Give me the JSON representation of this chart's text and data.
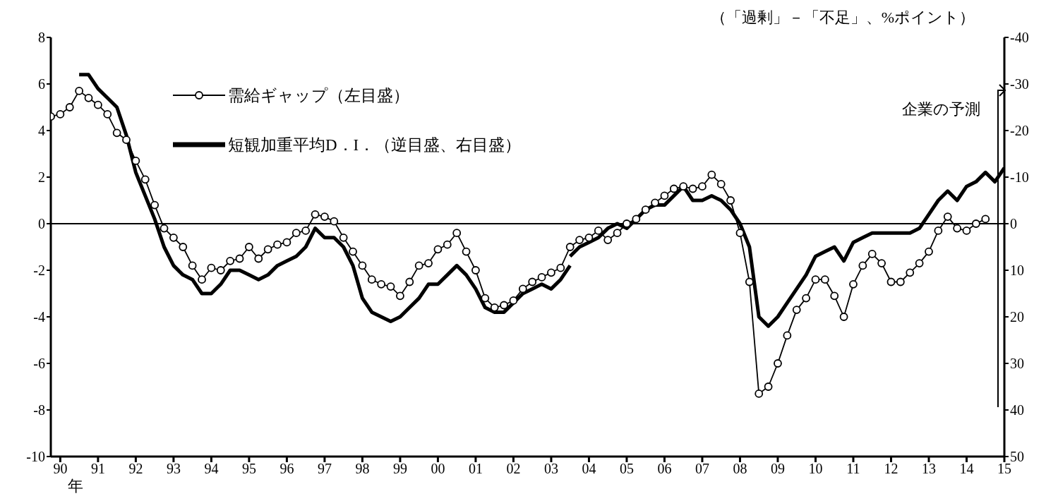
{
  "chart_data": {
    "type": "line",
    "annotations": [
      "（「過剰」－「不足」、%ポイント）",
      "年",
      "企業の予測"
    ],
    "categories": [
      null,
      "90",
      null,
      null,
      null,
      "91",
      null,
      null,
      null,
      "92",
      null,
      null,
      null,
      "93",
      null,
      null,
      null,
      "94",
      null,
      null,
      null,
      "95",
      null,
      null,
      null,
      "96",
      null,
      null,
      null,
      "97",
      null,
      null,
      null,
      "98",
      null,
      null,
      null,
      "99",
      null,
      null,
      null,
      "00",
      null,
      null,
      null,
      "01",
      null,
      null,
      null,
      "02",
      null,
      null,
      null,
      "03",
      null,
      null,
      null,
      "04",
      null,
      null,
      null,
      "05",
      null,
      null,
      null,
      "06",
      null,
      null,
      null,
      "07",
      null,
      null,
      null,
      "08",
      null,
      null,
      null,
      "09",
      null,
      null,
      null,
      "10",
      null,
      null,
      null,
      "11",
      null,
      null,
      null,
      "12",
      null,
      null,
      null,
      "13",
      null,
      null,
      null,
      "14",
      null,
      null,
      null,
      "15"
    ],
    "series": [
      {
        "name": "需給ギャップ（左目盛）",
        "color": "#000000",
        "marker": "circle",
        "values": [
          4.6,
          4.7,
          5.0,
          5.7,
          5.4,
          5.1,
          4.7,
          3.9,
          3.6,
          2.7,
          1.9,
          0.8,
          -0.2,
          -0.6,
          -1.0,
          -1.8,
          -2.4,
          -1.9,
          -2.0,
          -1.6,
          -1.5,
          -1.0,
          -1.5,
          -1.1,
          -0.9,
          -0.8,
          -0.4,
          -0.3,
          0.4,
          0.3,
          0.1,
          -0.6,
          -1.2,
          -1.8,
          -2.4,
          -2.6,
          -2.7,
          -3.1,
          -2.5,
          -1.8,
          -1.7,
          -1.1,
          -0.9,
          -0.4,
          -1.2,
          -2.0,
          -3.2,
          -3.6,
          -3.5,
          -3.3,
          -2.8,
          -2.5,
          -2.3,
          -2.1,
          -1.9,
          -1.0,
          -0.7,
          -0.6,
          -0.3,
          -0.7,
          -0.4,
          0.0,
          0.2,
          0.6,
          0.9,
          1.2,
          1.5,
          1.6,
          1.5,
          1.6,
          2.1,
          1.7,
          1.0,
          -0.4,
          -2.5,
          -7.3,
          -7.0,
          -6.0,
          -4.8,
          -3.7,
          -3.2,
          -2.4,
          -2.4,
          -3.1,
          -4.0,
          -2.6,
          -1.8,
          -1.3,
          -1.7,
          -2.5,
          -2.5,
          -2.1,
          -1.7,
          -1.2,
          -0.3,
          0.3,
          -0.2,
          -0.3,
          0.0,
          0.2,
          null,
          null
        ]
      },
      {
        "name": "短観加重平均D．I．（逆目盛、右目盛）",
        "color": "#000000",
        "axis": "y2",
        "values": [
          null,
          null,
          null,
          -32,
          -32,
          -29,
          -27,
          -25,
          -19,
          -11,
          -6,
          -1,
          5,
          9,
          11,
          12,
          15,
          15,
          13,
          10,
          10,
          11,
          12,
          11,
          9,
          8,
          7,
          5,
          1,
          3,
          3,
          5,
          9,
          16,
          19,
          20,
          21,
          20,
          18,
          16,
          13,
          13,
          11,
          9,
          11,
          14,
          18,
          19,
          19,
          17,
          15,
          14,
          13,
          14,
          12,
          9,
          null,
          null,
          null,
          null,
          null,
          null,
          null,
          null,
          null,
          null,
          null,
          null,
          null,
          null,
          null,
          null,
          null,
          null,
          null,
          null,
          null,
          null,
          null,
          null,
          null,
          null,
          null,
          null,
          null,
          null,
          null,
          null,
          null,
          null,
          null,
          null,
          null,
          null,
          null,
          null,
          null,
          null,
          null,
          null,
          null,
          null
        ]
      },
      {
        "color": "#000000",
        "axis": "y2",
        "values": [
          null,
          null,
          null,
          null,
          null,
          null,
          null,
          null,
          null,
          null,
          null,
          null,
          null,
          null,
          null,
          null,
          null,
          null,
          null,
          null,
          null,
          null,
          null,
          null,
          null,
          null,
          null,
          null,
          null,
          null,
          null,
          null,
          null,
          null,
          null,
          null,
          null,
          null,
          null,
          null,
          null,
          null,
          null,
          null,
          null,
          null,
          null,
          null,
          null,
          null,
          null,
          null,
          null,
          null,
          null,
          7,
          5,
          4,
          3,
          1,
          0,
          1,
          -1,
          -3,
          -4,
          -4,
          -6,
          -8,
          -5,
          -5,
          -6,
          -5,
          -3,
          0,
          5,
          20,
          22,
          20,
          17,
          14,
          11,
          7,
          6,
          5,
          8,
          4,
          3,
          2,
          2,
          2,
          2,
          2,
          1,
          -2,
          -5,
          -7,
          -5,
          -8,
          -9,
          -11,
          -9,
          -12
        ]
      }
    ],
    "ylim": [
      -10,
      8
    ],
    "yticks": [
      -10,
      -8,
      -6,
      -4,
      -2,
      0,
      2,
      4,
      6,
      8
    ],
    "y2lim": [
      50,
      -40
    ],
    "y2ticks": [
      -40,
      -30,
      -20,
      -10,
      0,
      10,
      20,
      30,
      40,
      50
    ],
    "ref_lines": [
      {
        "axis": "y",
        "value": 0,
        "color": "#000000"
      }
    ],
    "legend": "top left"
  }
}
